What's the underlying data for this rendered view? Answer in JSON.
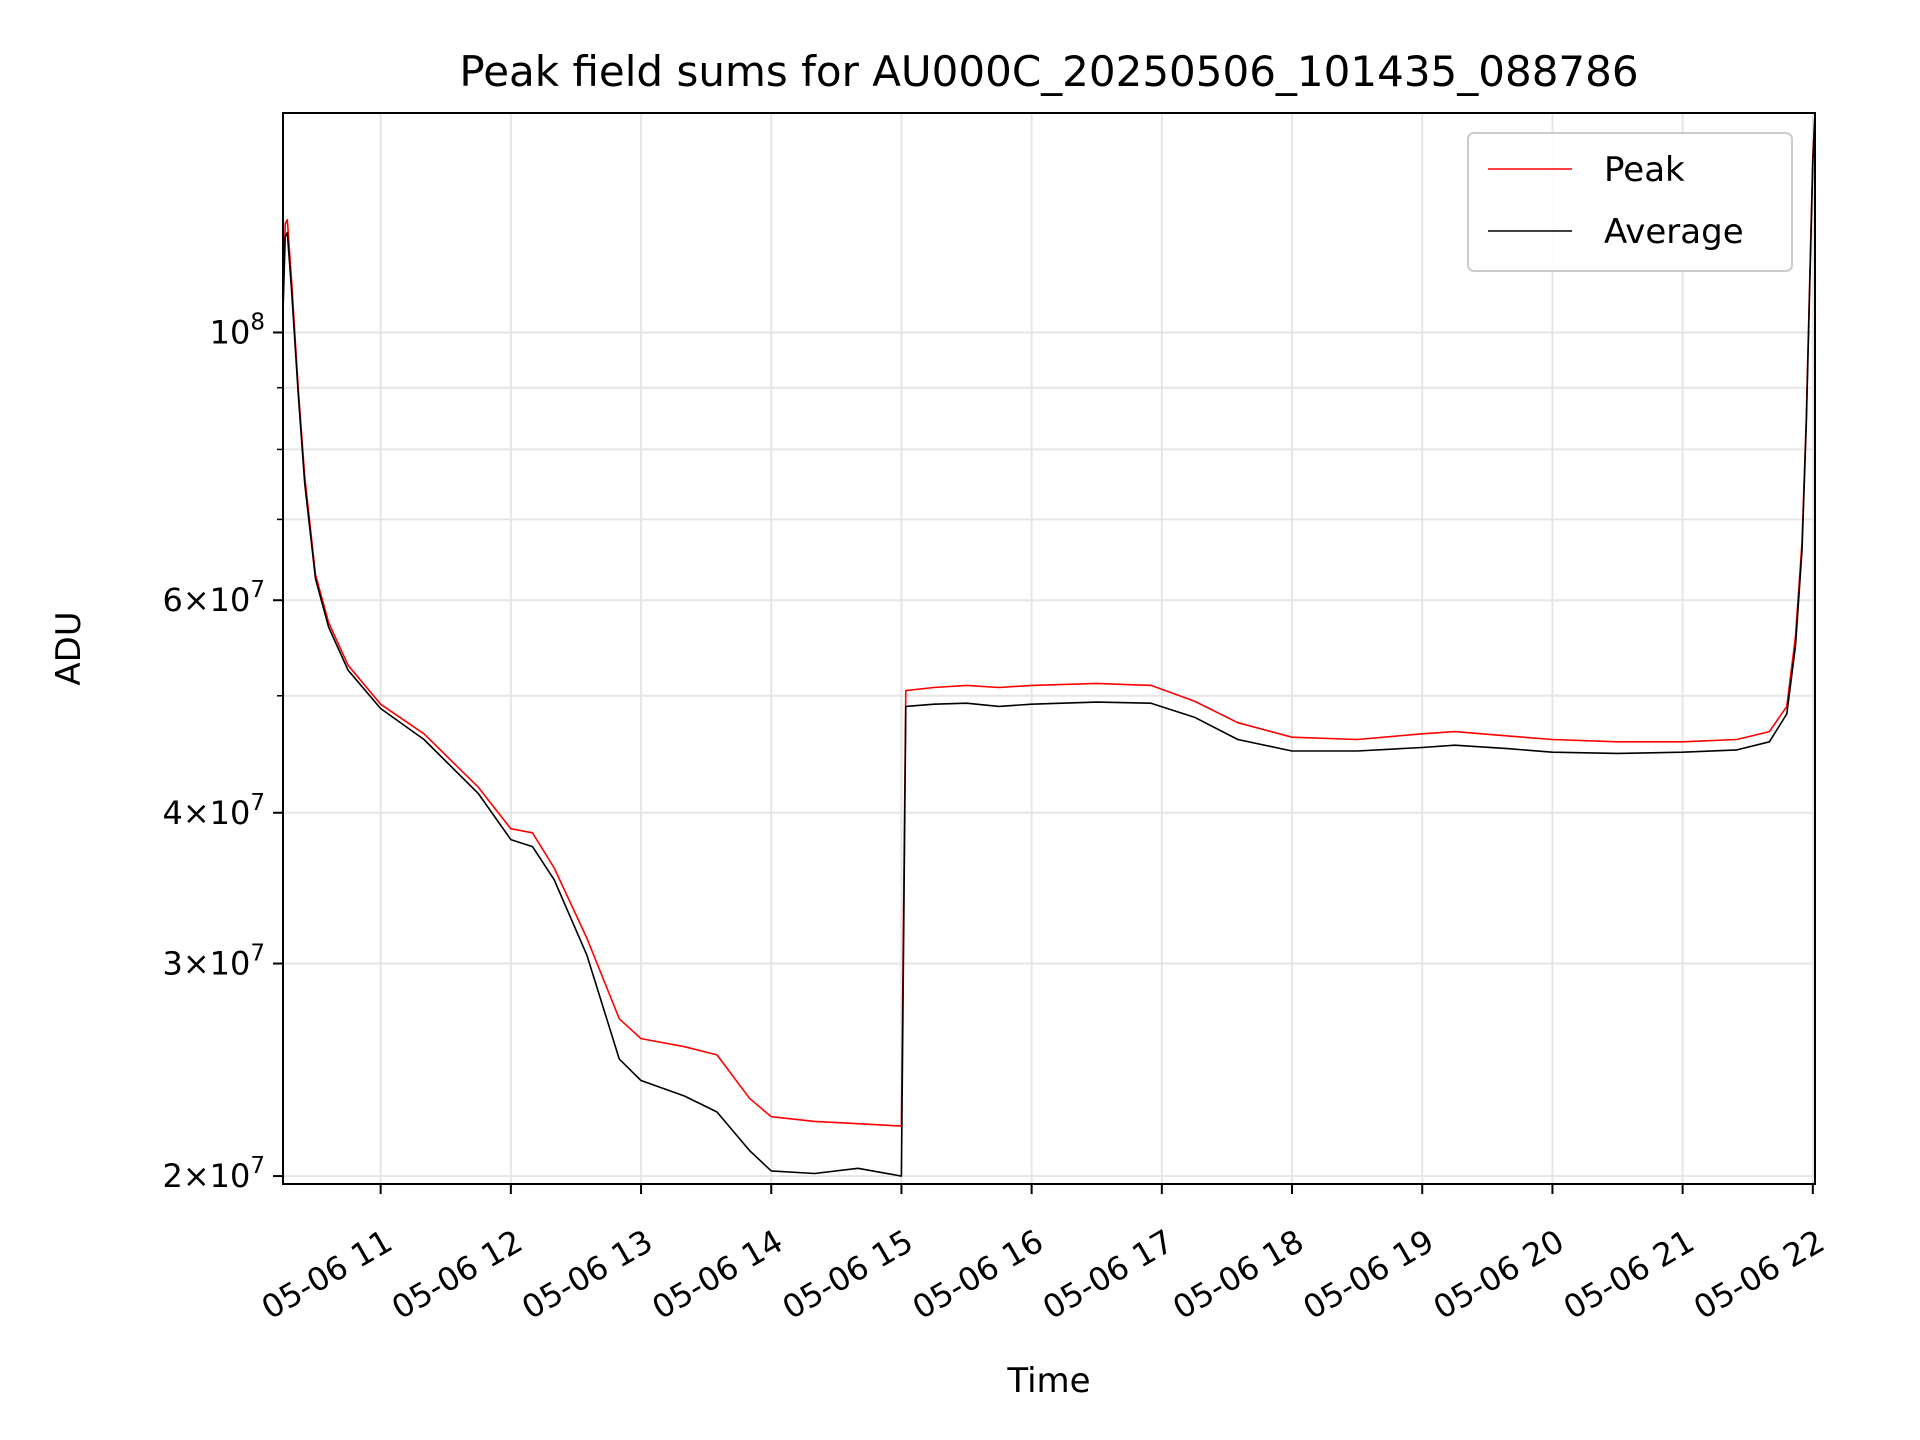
{
  "chart_data": {
    "type": "line",
    "title": "Peak field sums for AU000C_20250506_101435_088786",
    "xlabel": "Time",
    "ylabel": "ADU",
    "yscale": "log",
    "grid": true,
    "legend_position": "top-right",
    "xlim": [
      "2025-05-06 10:15",
      "2025-05-06 22:01"
    ],
    "ylim": [
      19700000,
      152000000
    ],
    "x_ticks": [
      {
        "value": "2025-05-06 11:00",
        "label": "05-06 11"
      },
      {
        "value": "2025-05-06 12:00",
        "label": "05-06 12"
      },
      {
        "value": "2025-05-06 13:00",
        "label": "05-06 13"
      },
      {
        "value": "2025-05-06 14:00",
        "label": "05-06 14"
      },
      {
        "value": "2025-05-06 15:00",
        "label": "05-06 15"
      },
      {
        "value": "2025-05-06 16:00",
        "label": "05-06 16"
      },
      {
        "value": "2025-05-06 17:00",
        "label": "05-06 17"
      },
      {
        "value": "2025-05-06 18:00",
        "label": "05-06 18"
      },
      {
        "value": "2025-05-06 19:00",
        "label": "05-06 19"
      },
      {
        "value": "2025-05-06 20:00",
        "label": "05-06 20"
      },
      {
        "value": "2025-05-06 21:00",
        "label": "05-06 21"
      },
      {
        "value": "2025-05-06 22:00",
        "label": "05-06 22"
      }
    ],
    "y_major_ticks": [
      {
        "value": 100000000,
        "mant": "",
        "exp": "8"
      },
      {
        "value": 60000000,
        "mant": "6",
        "exp": "7"
      },
      {
        "value": 40000000,
        "mant": "4",
        "exp": "7"
      },
      {
        "value": 30000000,
        "mant": "3",
        "exp": "7"
      },
      {
        "value": 20000000,
        "mant": "2",
        "exp": "7"
      }
    ],
    "y_minor_ticks": [
      90000000,
      80000000,
      70000000,
      50000000
    ],
    "series": [
      {
        "name": "Peak",
        "color": "#ff0000",
        "x": [
          "2025-05-06 10:15",
          "2025-05-06 10:16",
          "2025-05-06 10:17",
          "2025-05-06 10:19",
          "2025-05-06 10:22",
          "2025-05-06 10:25",
          "2025-05-06 10:30",
          "2025-05-06 10:36",
          "2025-05-06 10:45",
          "2025-05-06 11:00",
          "2025-05-06 11:20",
          "2025-05-06 11:45",
          "2025-05-06 12:00",
          "2025-05-06 12:10",
          "2025-05-06 12:20",
          "2025-05-06 12:35",
          "2025-05-06 12:50",
          "2025-05-06 13:00",
          "2025-05-06 13:20",
          "2025-05-06 13:35",
          "2025-05-06 13:50",
          "2025-05-06 14:00",
          "2025-05-06 14:20",
          "2025-05-06 14:40",
          "2025-05-06 15:00",
          "2025-05-06 15:02",
          "2025-05-06 15:15",
          "2025-05-06 15:30",
          "2025-05-06 15:45",
          "2025-05-06 16:00",
          "2025-05-06 16:30",
          "2025-05-06 16:55",
          "2025-05-06 17:15",
          "2025-05-06 17:35",
          "2025-05-06 18:00",
          "2025-05-06 18:30",
          "2025-05-06 19:00",
          "2025-05-06 19:15",
          "2025-05-06 19:40",
          "2025-05-06 20:00",
          "2025-05-06 20:30",
          "2025-05-06 21:00",
          "2025-05-06 21:25",
          "2025-05-06 21:40",
          "2025-05-06 21:48",
          "2025-05-06 21:52",
          "2025-05-06 21:55",
          "2025-05-06 21:57",
          "2025-05-06 22:00",
          "2025-05-06 22:01"
        ],
        "y": [
          106000000,
          123000000,
          124000000,
          110000000,
          90000000,
          76000000,
          63000000,
          57500000,
          53000000,
          49200000,
          46500000,
          42000000,
          38800000,
          38500000,
          36000000,
          31500000,
          27000000,
          26000000,
          25600000,
          25200000,
          23200000,
          22400000,
          22200000,
          22100000,
          22000000,
          50500000,
          50800000,
          51000000,
          50800000,
          51000000,
          51200000,
          51000000,
          49500000,
          47500000,
          46200000,
          46000000,
          46500000,
          46700000,
          46300000,
          46000000,
          45800000,
          45800000,
          46000000,
          46700000,
          49000000,
          56000000,
          67000000,
          85000000,
          140000000,
          152000000
        ]
      },
      {
        "name": "Average",
        "color": "#000000",
        "x": [
          "2025-05-06 10:15",
          "2025-05-06 10:16",
          "2025-05-06 10:17",
          "2025-05-06 10:19",
          "2025-05-06 10:22",
          "2025-05-06 10:25",
          "2025-05-06 10:30",
          "2025-05-06 10:36",
          "2025-05-06 10:45",
          "2025-05-06 11:00",
          "2025-05-06 11:20",
          "2025-05-06 11:45",
          "2025-05-06 12:00",
          "2025-05-06 12:10",
          "2025-05-06 12:20",
          "2025-05-06 12:35",
          "2025-05-06 12:50",
          "2025-05-06 13:00",
          "2025-05-06 13:20",
          "2025-05-06 13:35",
          "2025-05-06 13:50",
          "2025-05-06 14:00",
          "2025-05-06 14:20",
          "2025-05-06 14:40",
          "2025-05-06 15:00",
          "2025-05-06 15:02",
          "2025-05-06 15:15",
          "2025-05-06 15:30",
          "2025-05-06 15:45",
          "2025-05-06 16:00",
          "2025-05-06 16:30",
          "2025-05-06 16:55",
          "2025-05-06 17:15",
          "2025-05-06 17:35",
          "2025-05-06 18:00",
          "2025-05-06 18:30",
          "2025-05-06 19:00",
          "2025-05-06 19:15",
          "2025-05-06 19:40",
          "2025-05-06 20:00",
          "2025-05-06 20:30",
          "2025-05-06 21:00",
          "2025-05-06 21:25",
          "2025-05-06 21:40",
          "2025-05-06 21:48",
          "2025-05-06 21:52",
          "2025-05-06 21:55",
          "2025-05-06 21:57",
          "2025-05-06 22:00",
          "2025-05-06 22:01"
        ],
        "y": [
          104000000,
          120000000,
          121000000,
          108000000,
          89000000,
          75000000,
          62500000,
          57000000,
          52500000,
          48800000,
          46000000,
          41500000,
          38000000,
          37500000,
          35200000,
          30500000,
          25000000,
          24000000,
          23300000,
          22600000,
          21000000,
          20200000,
          20100000,
          20300000,
          20000000,
          49000000,
          49200000,
          49300000,
          49000000,
          49200000,
          49400000,
          49300000,
          48000000,
          46000000,
          45000000,
          45000000,
          45300000,
          45500000,
          45200000,
          44900000,
          44800000,
          44900000,
          45100000,
          45800000,
          48300000,
          55000000,
          66000000,
          84000000,
          138000000,
          152000000
        ]
      }
    ]
  }
}
